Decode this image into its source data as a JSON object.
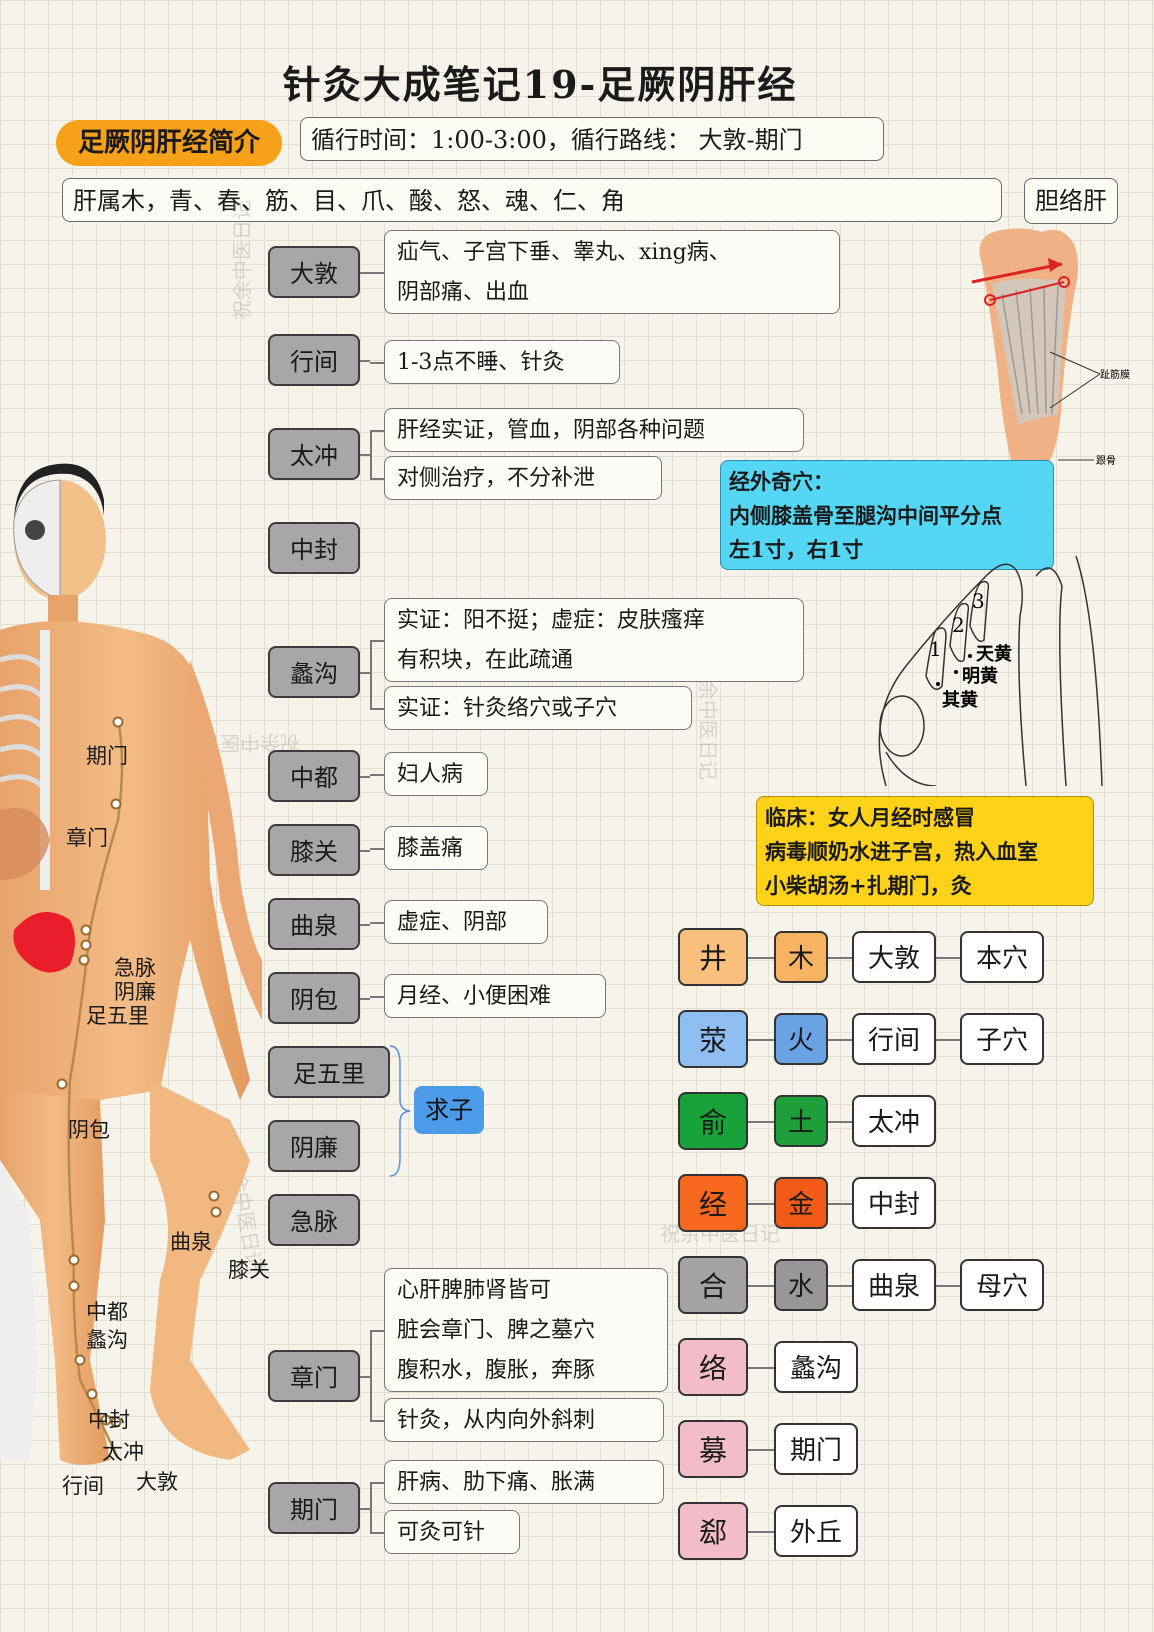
{
  "title": "针灸大成笔记19-足厥阴肝经",
  "intro": {
    "label": "足厥阴肝经简介",
    "time_route": "循行时间：1:00-3:00，循行路线： 大敦-期门",
    "attributes": "肝属木，青、春、筋、目、爪、酸、怒、魂、仁、角",
    "gallbladder": "胆络肝"
  },
  "points": [
    {
      "name": "大敦",
      "notes": [
        "疝气、子宫下垂、睾丸、xing病、\n阴部痛、出血"
      ]
    },
    {
      "name": "行间",
      "notes": [
        "1-3点不睡、针灸"
      ]
    },
    {
      "name": "太冲",
      "notes": [
        "肝经实证，管血，阴部各种问题",
        "对侧治疗，不分补泄"
      ]
    },
    {
      "name": "中封",
      "notes": []
    },
    {
      "name": "蠡沟",
      "notes": [
        "实证：阳不挺；虚症：皮肤瘙痒\n有积块，在此疏通",
        "实证：针灸络穴或子穴"
      ]
    },
    {
      "name": "中都",
      "notes": [
        "妇人病"
      ]
    },
    {
      "name": "膝关",
      "notes": [
        "膝盖痛"
      ]
    },
    {
      "name": "曲泉",
      "notes": [
        "虚症、阴部"
      ]
    },
    {
      "name": "阴包",
      "notes": [
        "月经、小便困难"
      ]
    },
    {
      "name": "足五里",
      "notes": []
    },
    {
      "name": "阴廉",
      "notes": []
    },
    {
      "name": "急脉",
      "notes": []
    },
    {
      "name": "章门",
      "notes": [
        "心肝脾肺肾皆可\n脏会章门、脾之墓穴\n腹积水，腹胀，奔豚",
        "针灸，从内向外斜刺"
      ]
    },
    {
      "name": "期门",
      "notes": [
        "肝病、肋下痛、胀满",
        "可灸可针"
      ]
    }
  ],
  "qiuzi": "求子",
  "extra_point": {
    "lines": [
      "经外奇穴：",
      "内侧膝盖骨至腿沟中间平分点",
      "左1寸，右1寸"
    ],
    "knee_labels": [
      "1",
      "2",
      "3",
      "天黄",
      "明黄",
      "其黄"
    ]
  },
  "clinic": {
    "lines": [
      "临床：女人月经时感冒",
      "病毒顺奶水进子宫，热入血室",
      "小柴胡汤+扎期门，灸"
    ]
  },
  "foot_labels": [
    "趾筋膜",
    "跟骨"
  ],
  "shu_table": [
    {
      "cat": "井",
      "el": "木",
      "pt": "大敦",
      "note": "本穴",
      "cat_color": "#f9c07d",
      "el_color": "#f9b463"
    },
    {
      "cat": "荥",
      "el": "火",
      "pt": "行间",
      "note": "子穴",
      "cat_color": "#8fbff2",
      "el_color": "#6aa2e6"
    },
    {
      "cat": "俞",
      "el": "土",
      "pt": "太冲",
      "note": "",
      "cat_color": "#17a33a",
      "el_color": "#1f9f3a"
    },
    {
      "cat": "经",
      "el": "金",
      "pt": "中封",
      "note": "",
      "cat_color": "#f5681e",
      "el_color": "#f25a17"
    },
    {
      "cat": "合",
      "el": "水",
      "pt": "曲泉",
      "note": "母穴",
      "cat_color": "#a3a3a3",
      "el_color": "#979797"
    },
    {
      "cat": "络",
      "el": "",
      "pt": "蠡沟",
      "note": "",
      "cat_color": "#f2bcc8",
      "el_color": ""
    },
    {
      "cat": "募",
      "el": "",
      "pt": "期门",
      "note": "",
      "cat_color": "#f2bcc8",
      "el_color": ""
    },
    {
      "cat": "郄",
      "el": "",
      "pt": "外丘",
      "note": "",
      "cat_color": "#f2bcc8",
      "el_color": ""
    }
  ],
  "body_labels": [
    "期门",
    "章门",
    "急脉",
    "阴廉",
    "足五里",
    "阴包",
    "曲泉",
    "膝关",
    "中都",
    "蠡沟",
    "中封",
    "太冲",
    "行间",
    "大敦"
  ],
  "watermark": "祝余中医日记"
}
